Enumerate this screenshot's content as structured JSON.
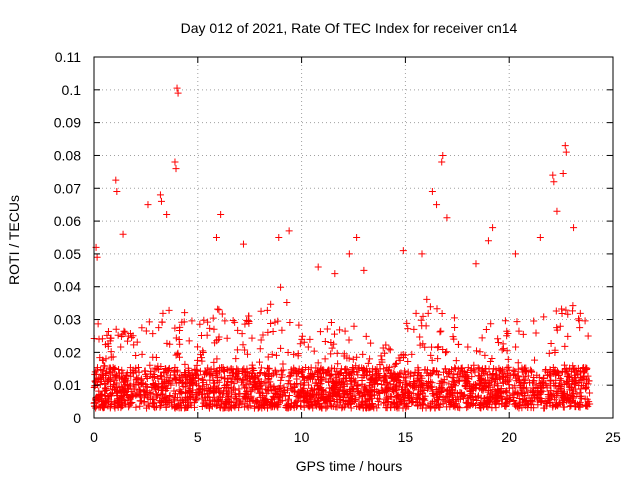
{
  "chart_data": {
    "type": "scatter",
    "title": "Day 012 of 2021, Rate Of TEC Index for receiver cn14",
    "xlabel": "GPS time / hours",
    "ylabel": "ROTI / TECUs",
    "xlim": [
      0,
      25
    ],
    "ylim": [
      0,
      0.11
    ],
    "x_ticks": [
      "0",
      "5",
      "10",
      "15",
      "20",
      "25"
    ],
    "y_ticks": [
      "0",
      "0.01",
      "0.02",
      "0.03",
      "0.04",
      "0.05",
      "0.06",
      "0.07",
      "0.08",
      "0.09",
      "0.1",
      "0.11"
    ],
    "grid": true,
    "marker": "+",
    "color": "#ff0000",
    "notable_points": [
      {
        "x": 4.0,
        "y": 0.1005
      },
      {
        "x": 4.05,
        "y": 0.099
      },
      {
        "x": 3.9,
        "y": 0.078
      },
      {
        "x": 3.95,
        "y": 0.076
      },
      {
        "x": 16.8,
        "y": 0.08
      },
      {
        "x": 16.75,
        "y": 0.078
      },
      {
        "x": 22.7,
        "y": 0.083
      },
      {
        "x": 22.75,
        "y": 0.081
      },
      {
        "x": 1.05,
        "y": 0.0725
      },
      {
        "x": 1.1,
        "y": 0.069
      },
      {
        "x": 3.2,
        "y": 0.068
      },
      {
        "x": 3.25,
        "y": 0.066
      },
      {
        "x": 22.1,
        "y": 0.074
      },
      {
        "x": 22.15,
        "y": 0.072
      },
      {
        "x": 16.3,
        "y": 0.069
      },
      {
        "x": 16.5,
        "y": 0.065
      },
      {
        "x": 2.6,
        "y": 0.065
      },
      {
        "x": 3.5,
        "y": 0.062
      },
      {
        "x": 22.3,
        "y": 0.063
      },
      {
        "x": 22.6,
        "y": 0.0745
      },
      {
        "x": 0.1,
        "y": 0.052
      },
      {
        "x": 0.15,
        "y": 0.049
      },
      {
        "x": 9.4,
        "y": 0.057
      },
      {
        "x": 8.9,
        "y": 0.055
      },
      {
        "x": 12.65,
        "y": 0.055
      },
      {
        "x": 12.3,
        "y": 0.05
      },
      {
        "x": 19.2,
        "y": 0.058
      },
      {
        "x": 19.0,
        "y": 0.054
      },
      {
        "x": 20.3,
        "y": 0.05
      },
      {
        "x": 21.5,
        "y": 0.055
      },
      {
        "x": 6.1,
        "y": 0.062
      },
      {
        "x": 5.9,
        "y": 0.055
      },
      {
        "x": 7.2,
        "y": 0.053
      },
      {
        "x": 14.9,
        "y": 0.051
      },
      {
        "x": 23.1,
        "y": 0.058
      },
      {
        "x": 18.4,
        "y": 0.047
      },
      {
        "x": 17.0,
        "y": 0.061
      },
      {
        "x": 15.8,
        "y": 0.05
      },
      {
        "x": 13.0,
        "y": 0.045
      },
      {
        "x": 10.8,
        "y": 0.046
      },
      {
        "x": 11.6,
        "y": 0.044
      },
      {
        "x": 1.4,
        "y": 0.056
      }
    ],
    "activity_envelope": {
      "hours": [
        0,
        1,
        2,
        3,
        4,
        5,
        6,
        7,
        8,
        9,
        10,
        11,
        12,
        13,
        14,
        15,
        16,
        17,
        18,
        19,
        20,
        21,
        22,
        23,
        24
      ],
      "typical_max": [
        0.03,
        0.028,
        0.026,
        0.032,
        0.035,
        0.03,
        0.034,
        0.03,
        0.033,
        0.04,
        0.028,
        0.027,
        0.032,
        0.026,
        0.022,
        0.03,
        0.038,
        0.035,
        0.025,
        0.03,
        0.03,
        0.03,
        0.033,
        0.036,
        0.03
      ],
      "baseline_min": 0.003,
      "dense_center": 0.011
    }
  }
}
